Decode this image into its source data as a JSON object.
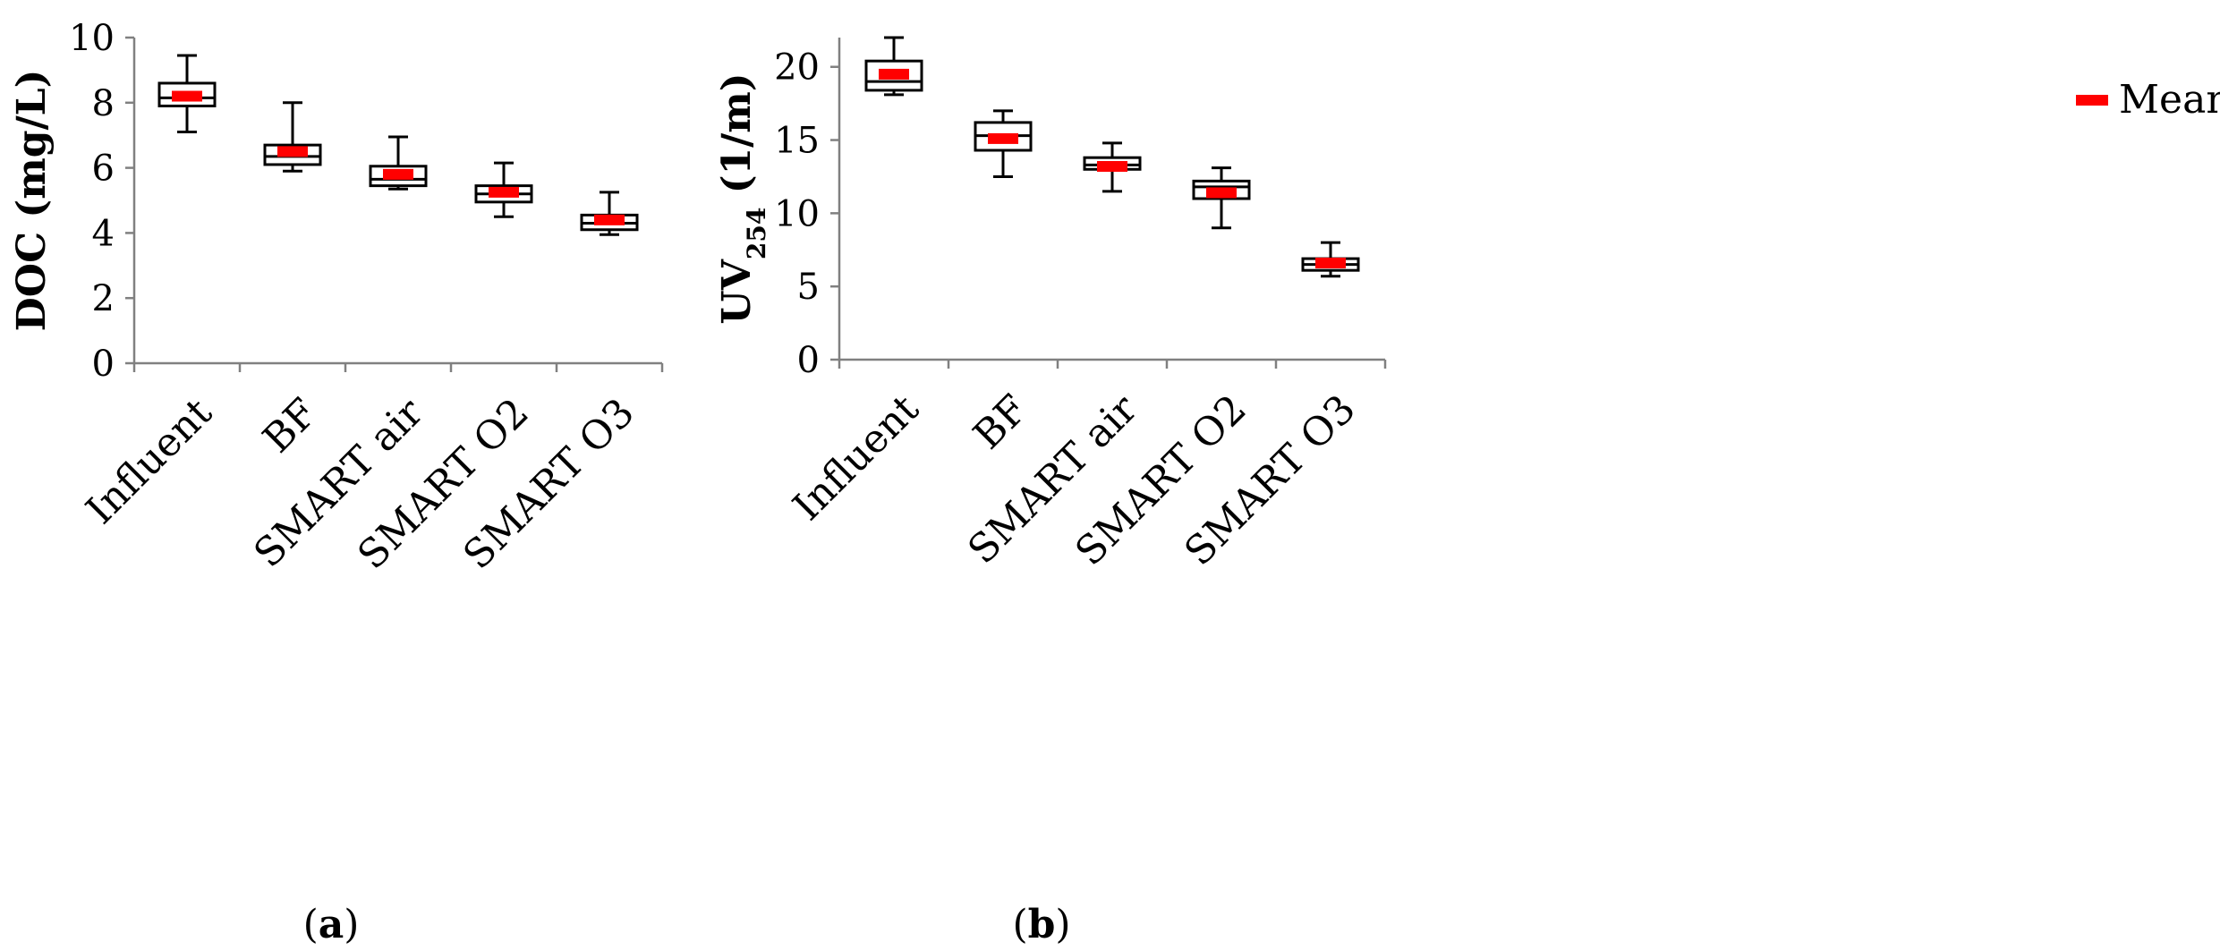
{
  "chart_data": [
    {
      "type": "box",
      "panel_label": "(a)",
      "panel_letter": "a",
      "title": "",
      "xlabel": "",
      "ylabel": "DOC (mg/L)",
      "ylim": [
        0,
        10
      ],
      "yticks": [
        0,
        2,
        4,
        6,
        8,
        10
      ],
      "ytick_labels": [
        "0",
        "2",
        "4",
        "6",
        "8",
        "10"
      ],
      "categories": [
        "Influent",
        "BF",
        "SMART air",
        "SMART O2",
        "SMART O3"
      ],
      "boxes": [
        {
          "min": 7.1,
          "q1": 7.9,
          "median": 8.15,
          "q3": 8.6,
          "max": 9.45,
          "mean": 8.2
        },
        {
          "min": 5.9,
          "q1": 6.1,
          "median": 6.35,
          "q3": 6.7,
          "max": 8.0,
          "mean": 6.5
        },
        {
          "min": 5.35,
          "q1": 5.45,
          "median": 5.65,
          "q3": 6.05,
          "max": 6.95,
          "mean": 5.8
        },
        {
          "min": 4.5,
          "q1": 4.95,
          "median": 5.2,
          "q3": 5.45,
          "max": 6.15,
          "mean": 5.25
        },
        {
          "min": 3.95,
          "q1": 4.1,
          "median": 4.3,
          "q3": 4.55,
          "max": 5.25,
          "mean": 4.4
        }
      ],
      "legend": null
    },
    {
      "type": "box",
      "panel_label": "(b)",
      "panel_letter": "b",
      "title": "",
      "xlabel": "",
      "ylabel": "UV",
      "ylabel_subscript": "254",
      "ylabel_unit": " (1/m)",
      "ylim": [
        0,
        22
      ],
      "yticks": [
        0,
        5,
        10,
        15,
        20
      ],
      "ytick_labels": [
        "0",
        "5",
        "10",
        "15",
        "20"
      ],
      "categories": [
        "Influent",
        "BF",
        "SMART air",
        "SMART O2",
        "SMART O3"
      ],
      "boxes": [
        {
          "min": 18.1,
          "q1": 18.4,
          "median": 19.0,
          "q3": 20.4,
          "max": 22.0,
          "mean": 19.5
        },
        {
          "min": 12.5,
          "q1": 14.3,
          "median": 15.3,
          "q3": 16.2,
          "max": 17.0,
          "mean": 15.1
        },
        {
          "min": 11.5,
          "q1": 13.0,
          "median": 13.3,
          "q3": 13.8,
          "max": 14.8,
          "mean": 13.2
        },
        {
          "min": 9.0,
          "q1": 11.0,
          "median": 11.8,
          "q3": 12.2,
          "max": 13.1,
          "mean": 11.4
        },
        {
          "min": 5.7,
          "q1": 6.1,
          "median": 6.5,
          "q3": 6.9,
          "max": 8.0,
          "mean": 6.6
        }
      ],
      "legend": {
        "label": "Mean",
        "position": "top-right"
      }
    }
  ],
  "colors": {
    "mean_marker": "#ff0000",
    "box_stroke": "#000000",
    "axis": "#808080",
    "text": "#000000",
    "background": "#ffffff"
  }
}
